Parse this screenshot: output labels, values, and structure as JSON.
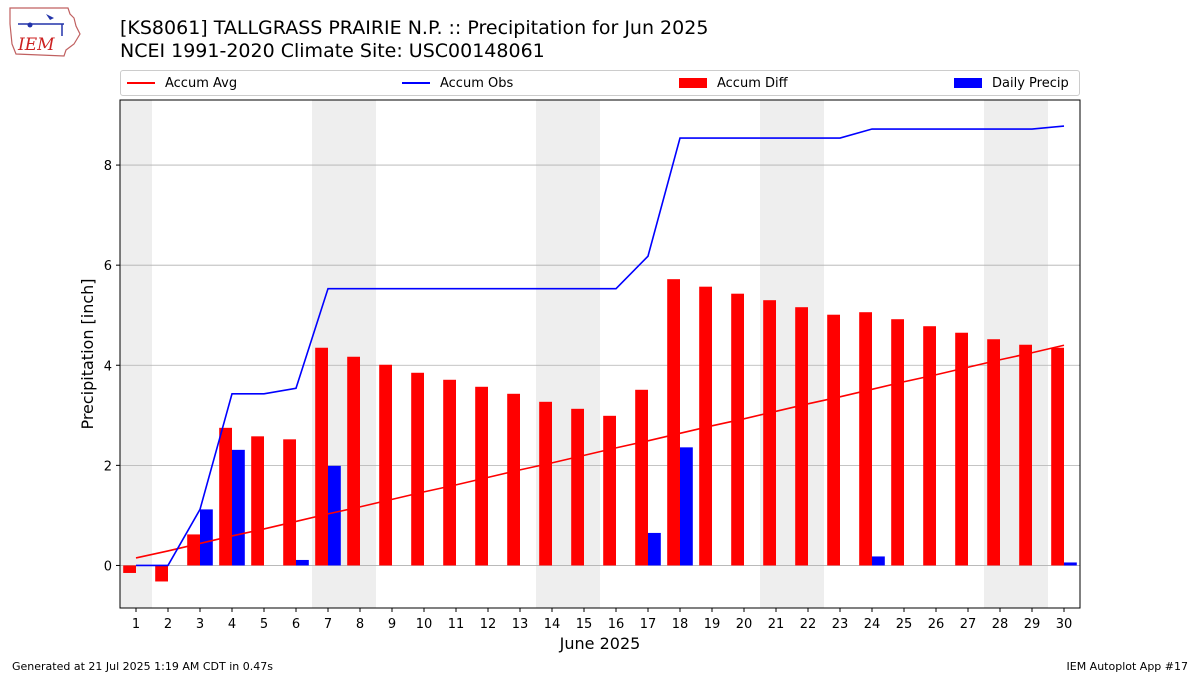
{
  "header": {
    "title_line1": "[KS8061] TALLGRASS PRAIRIE N.P. :: Precipitation for Jun 2025",
    "title_line2": "NCEI 1991-2020 Climate Site: USC00148061",
    "logo_text": "IEM"
  },
  "legend": {
    "placement": "top",
    "items": [
      {
        "label": "Accum Avg",
        "kind": "line",
        "color": "#ff0000"
      },
      {
        "label": "Accum Obs",
        "kind": "line",
        "color": "#0000ff"
      },
      {
        "label": "Accum Diff",
        "kind": "bar",
        "color": "#ff0000"
      },
      {
        "label": "Daily Precip",
        "kind": "bar",
        "color": "#0000ff"
      }
    ]
  },
  "footer": {
    "generated": "Generated at 21 Jul 2025 1:19 AM CDT in 0.47s",
    "app": "IEM Autoplot App #17"
  },
  "colors": {
    "avg": "#ff0000",
    "obs": "#0000ff",
    "diff": "#ff0000",
    "daily": "#0000ff",
    "weekend": "#eeeeee",
    "grid": "#b0b0b0"
  },
  "chart_data": {
    "type": "bar",
    "xlabel": "June 2025",
    "ylabel": "Precipitation [inch]",
    "xlim": [
      0.5,
      30.5
    ],
    "ylim": [
      -0.85,
      9.3
    ],
    "yticks": [
      0,
      2,
      4,
      6,
      8
    ],
    "grid": "horizontal",
    "x": [
      1,
      2,
      3,
      4,
      5,
      6,
      7,
      8,
      9,
      10,
      11,
      12,
      13,
      14,
      15,
      16,
      17,
      18,
      19,
      20,
      21,
      22,
      23,
      24,
      25,
      26,
      27,
      28,
      29,
      30
    ],
    "shaded_days": [
      1,
      7,
      8,
      14,
      15,
      21,
      22,
      28,
      29
    ],
    "series": [
      {
        "name": "Accum Avg",
        "type": "line",
        "values": [
          0.15,
          0.29,
          0.44,
          0.59,
          0.73,
          0.88,
          1.03,
          1.17,
          1.32,
          1.47,
          1.61,
          1.76,
          1.91,
          2.05,
          2.2,
          2.35,
          2.49,
          2.64,
          2.79,
          2.93,
          3.08,
          3.23,
          3.37,
          3.52,
          3.67,
          3.81,
          3.96,
          4.11,
          4.25,
          4.4
        ]
      },
      {
        "name": "Accum Obs",
        "type": "line",
        "values": [
          0.0,
          0.0,
          1.12,
          3.43,
          3.43,
          3.54,
          5.53,
          5.53,
          5.53,
          5.53,
          5.53,
          5.53,
          5.53,
          5.53,
          5.53,
          5.53,
          6.18,
          8.54,
          8.54,
          8.54,
          8.54,
          8.54,
          8.54,
          8.72,
          8.72,
          8.72,
          8.72,
          8.72,
          8.72,
          8.78
        ]
      },
      {
        "name": "Accum Diff",
        "type": "bar",
        "values": [
          -0.15,
          -0.32,
          0.62,
          2.75,
          2.58,
          2.52,
          4.35,
          4.17,
          4.01,
          3.85,
          3.71,
          3.57,
          3.43,
          3.27,
          3.13,
          2.99,
          3.51,
          5.72,
          5.57,
          5.43,
          5.3,
          5.16,
          5.01,
          5.06,
          4.92,
          4.78,
          4.65,
          4.52,
          4.41,
          4.35
        ]
      },
      {
        "name": "Daily Precip",
        "type": "bar",
        "values": [
          0.0,
          0.0,
          1.12,
          2.31,
          0.0,
          0.11,
          1.99,
          0.0,
          0.0,
          0.0,
          0.0,
          0.0,
          0.0,
          0.0,
          0.0,
          0.0,
          0.65,
          2.36,
          0.0,
          0.0,
          0.0,
          0.0,
          0.0,
          0.18,
          0.0,
          0.0,
          0.0,
          0.0,
          0.0,
          0.06
        ]
      }
    ]
  }
}
